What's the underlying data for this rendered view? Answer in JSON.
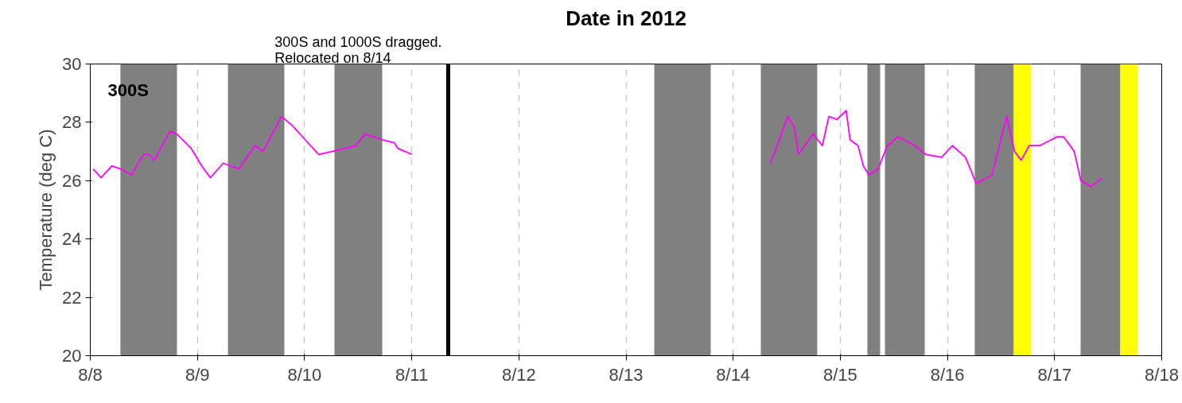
{
  "chart_data": {
    "type": "line",
    "title": "Date in 2012",
    "ylabel": "Temperature (deg C)",
    "annotations": [
      "300S"
    ],
    "x": [
      "2012-08-08T00:39",
      "2012-08-08T02:25",
      "2012-08-08T04:48",
      "2012-08-08T06:53",
      "2012-08-08T09:16",
      "2012-08-08T11:56",
      "2012-08-08T13:08",
      "2012-08-08T14:18",
      "2012-08-08T17:53",
      "2012-08-08T19:22",
      "2012-08-08T22:38",
      "2012-08-09T01:00",
      "2012-08-09T02:54",
      "2012-08-09T05:46",
      "2012-08-09T09:19",
      "2012-08-09T12:53",
      "2012-08-09T14:40",
      "2012-08-09T18:49",
      "2012-08-09T21:11",
      "2012-08-09T23:34",
      "2012-08-10T03:09",
      "2012-08-10T06:07",
      "2012-08-10T11:27",
      "2012-08-10T13:31",
      "2012-08-10T17:23",
      "2012-08-10T20:04",
      "2012-08-10T20:57",
      "2012-08-11T00:03",
      "2012-08-12T12:00",
      "2012-08-14T08:24",
      "2012-08-14T12:16",
      "2012-08-14T13:45",
      "2012-08-14T14:38",
      "2012-08-14T17:54",
      "2012-08-14T19:58",
      "2012-08-14T21:27",
      "2012-08-14T23:14",
      "2012-08-15T01:19",
      "2012-08-15T02:12",
      "2012-08-15T03:59",
      "2012-08-15T05:11",
      "2012-08-15T06:23",
      "2012-08-15T08:27",
      "2012-08-15T10:32",
      "2012-08-15T12:55",
      "2012-08-15T16:47",
      "2012-08-15T19:09",
      "2012-08-15T22:44",
      "2012-08-16T01:06",
      "2012-08-16T04:03",
      "2012-08-16T06:27",
      "2012-08-16T10:00",
      "2012-08-16T13:16",
      "2012-08-16T15:03",
      "2012-08-16T16:32",
      "2012-08-16T18:19",
      "2012-08-16T20:41",
      "2012-08-17T00:33",
      "2012-08-17T02:02",
      "2012-08-17T04:25",
      "2012-08-17T05:53",
      "2012-08-17T08:10",
      "2012-08-17T10:44"
    ],
    "series": [
      {
        "color": "#ff00ff",
        "values": [
          26.4,
          26.1,
          26.5,
          26.4,
          26.2,
          26.9,
          26.9,
          26.7,
          27.7,
          27.6,
          27.1,
          26.5,
          26.1,
          26.6,
          26.4,
          27.2,
          27.0,
          28.2,
          27.9,
          27.5,
          26.9,
          27.0,
          27.2,
          27.6,
          27.4,
          27.3,
          27.1,
          26.9,
          null,
          26.6,
          28.2,
          27.8,
          26.9,
          27.6,
          27.2,
          28.2,
          28.1,
          28.4,
          27.4,
          27.2,
          26.5,
          26.2,
          26.4,
          27.2,
          27.5,
          27.2,
          26.9,
          26.8,
          27.2,
          26.8,
          25.9,
          26.2,
          28.2,
          27.0,
          26.7,
          27.2,
          27.2,
          27.5,
          27.5,
          27.0,
          26.0,
          25.8,
          26.1
        ]
      }
    ],
    "xlim": [
      "2012-08-08",
      "2012-08-18"
    ],
    "xticks": [
      {
        "value": "2012-08-08",
        "label": "8/8"
      },
      {
        "value": "2012-08-09",
        "label": "8/9"
      },
      {
        "value": "2012-08-10",
        "label": "8/10"
      },
      {
        "value": "2012-08-11",
        "label": "8/11"
      },
      {
        "value": "2012-08-12",
        "label": "8/12"
      },
      {
        "value": "2012-08-13",
        "label": "8/13"
      },
      {
        "value": "2012-08-14",
        "label": "8/14"
      },
      {
        "value": "2012-08-15",
        "label": "8/15"
      },
      {
        "value": "2012-08-16",
        "label": "8/16"
      },
      {
        "value": "2012-08-17",
        "label": "8/17"
      },
      {
        "value": "2012-08-18",
        "label": "8/18"
      }
    ],
    "ylim": [
      20,
      30
    ],
    "yticks": [
      20,
      22,
      24,
      26,
      28,
      30
    ],
    "grid": "x",
    "marker": "none",
    "line_style": "solid",
    "ref_lines": [
      {
        "axis": "x",
        "value": "2012-08-11T08:11",
        "label": "300S and 1000S dragged.\nRelocated on 8/14",
        "color": "#000000"
      }
    ],
    "bands": [
      {
        "axis": "x",
        "from": "2012-08-08T06:45",
        "to": "2012-08-08T19:25",
        "color": "#808080"
      },
      {
        "axis": "x",
        "from": "2012-08-09T06:50",
        "to": "2012-08-09T19:28",
        "color": "#808080"
      },
      {
        "axis": "x",
        "from": "2012-08-10T06:42",
        "to": "2012-08-10T17:24",
        "color": "#808080"
      },
      {
        "axis": "x",
        "from": "2012-08-13T06:20",
        "to": "2012-08-13T18:59",
        "color": "#808080"
      },
      {
        "axis": "x",
        "from": "2012-08-14T06:12",
        "to": "2012-08-14T18:50",
        "color": "#808080"
      },
      {
        "axis": "x",
        "from": "2012-08-15T06:04",
        "to": "2012-08-15T08:56",
        "color": "#808080"
      },
      {
        "axis": "x",
        "from": "2012-08-15T10:00",
        "to": "2012-08-15T18:55",
        "color": "#808080"
      },
      {
        "axis": "x",
        "from": "2012-08-16T06:07",
        "to": "2012-08-16T14:51",
        "color": "#808080"
      },
      {
        "axis": "x",
        "from": "2012-08-16T14:51",
        "to": "2012-08-16T18:46",
        "color": "#ffff00"
      },
      {
        "axis": "x",
        "from": "2012-08-17T05:50",
        "to": "2012-08-17T14:44",
        "color": "#808080"
      },
      {
        "axis": "x",
        "from": "2012-08-17T14:44",
        "to": "2012-08-17T18:39",
        "color": "#ffff00"
      }
    ]
  }
}
